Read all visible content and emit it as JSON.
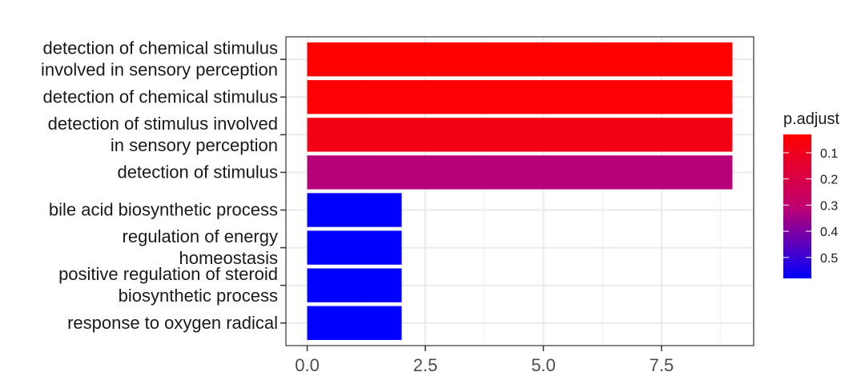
{
  "chart_data": {
    "type": "bar",
    "orientation": "horizontal",
    "categories": [
      [
        "detection of chemical stimulus",
        "involved in sensory perception"
      ],
      [
        "detection of chemical stimulus"
      ],
      [
        "detection of stimulus involved",
        "in sensory perception"
      ],
      [
        "detection of stimulus"
      ],
      [
        "bile acid biosynthetic process"
      ],
      [
        "regulation of energy",
        "homeostasis"
      ],
      [
        "positive regulation of steroid",
        "biosynthetic process"
      ],
      [
        "response to oxygen radical"
      ]
    ],
    "values": [
      9,
      9,
      9,
      9,
      2,
      2,
      2,
      2
    ],
    "p_adjust": [
      0.03,
      0.05,
      0.1,
      0.35,
      0.58,
      0.58,
      0.58,
      0.58
    ],
    "bar_colors": [
      "#FF0000",
      "#FC0004",
      "#F40014",
      "#B5007A",
      "#0000FF",
      "#0000FF",
      "#0000FF",
      "#0000FF"
    ],
    "x_ticks": [
      0,
      2.5,
      5,
      7.5
    ],
    "x_tick_labels": [
      "0.0",
      "2.5",
      "5.0",
      "7.5"
    ],
    "xlim": [
      -0.45,
      9.45
    ],
    "grid": true,
    "legend": {
      "title": "p.adjust",
      "position": "right",
      "type": "gradient",
      "colors": [
        "#FF0000",
        "#0000FF"
      ],
      "ticks": [
        0.1,
        0.2,
        0.3,
        0.4,
        0.5
      ],
      "tick_labels": [
        "0.1",
        "0.2",
        "0.3",
        "0.4",
        "0.5"
      ],
      "range": [
        0.03,
        0.58
      ]
    }
  }
}
